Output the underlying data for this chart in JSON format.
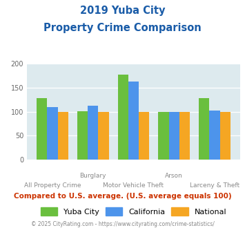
{
  "title_line1": "2019 Yuba City",
  "title_line2": "Property Crime Comparison",
  "x_labels_top": [
    "",
    "Burglary",
    "",
    "Arson",
    ""
  ],
  "x_labels_bottom": [
    "All Property Crime",
    "",
    "Motor Vehicle Theft",
    "",
    "Larceny & Theft"
  ],
  "yuba_city": [
    128,
    101,
    177,
    100,
    128
  ],
  "california": [
    110,
    113,
    163,
    100,
    103
  ],
  "national": [
    100,
    100,
    100,
    100,
    100
  ],
  "colors": {
    "yuba_city": "#6abf3e",
    "california": "#4d94eb",
    "national": "#f5a623"
  },
  "ylim": [
    0,
    200
  ],
  "yticks": [
    0,
    50,
    100,
    150,
    200
  ],
  "background_color": "#ddeaee",
  "title_color": "#1a5ca8",
  "subtitle_note": "Compared to U.S. average. (U.S. average equals 100)",
  "subtitle_note_color": "#cc3300",
  "footer": "© 2025 CityRating.com - https://www.cityrating.com/crime-statistics/",
  "footer_color": "#888888",
  "legend_labels": [
    "Yuba City",
    "California",
    "National"
  ]
}
